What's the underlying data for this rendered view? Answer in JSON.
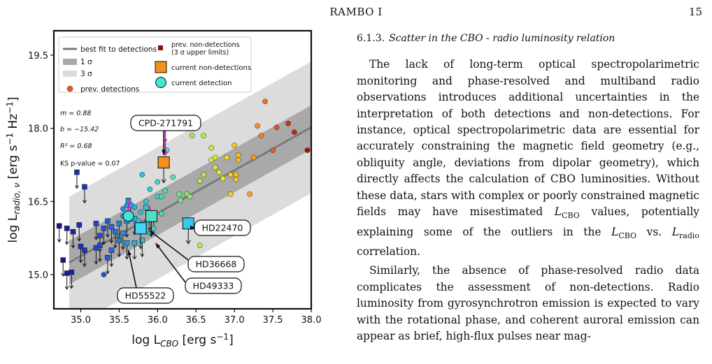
{
  "header": {
    "running_title": "RAMBO I",
    "page_number": "15"
  },
  "figure": {
    "chart_data": {
      "type": "scatter",
      "xlabel": "log L_CBO [erg s^-1]",
      "ylabel": "log L_radio,ν [erg s^-1 Hz^-1]",
      "xlim": [
        34.65,
        38.0
      ],
      "ylim": [
        14.3,
        20.0
      ],
      "x_ticks": [
        "35.0",
        "35.5",
        "36.0",
        "36.5",
        "37.0",
        "37.5",
        "38.0"
      ],
      "y_ticks": [
        "15.0",
        "16.5",
        "18.0",
        "19.5"
      ],
      "fit": {
        "m": 0.88,
        "b": -15.42,
        "sigma1": 0.45,
        "sigma3": 1.35
      },
      "stats": {
        "m_label": "m = 0.88",
        "b_label": "b = −15.42",
        "r2_label": "R² = 0.68",
        "ks_label": "KS p-value = 0.07"
      },
      "legend": {
        "placement": "top",
        "best_fit": "best fit to detections",
        "sigma1": "1 σ",
        "sigma3": "3 σ",
        "prev_detections": "prev. detections",
        "prev_nondet_line1": "prev. non-detections",
        "prev_nondet_line2": "(3 σ upper limits)",
        "current_nondet": "current non-detections",
        "current_det": "current detection"
      },
      "annotations": [
        "CPD-271791",
        "HD22470",
        "HD36668",
        "HD49333",
        "HD55522"
      ],
      "colors": {
        "fit_line": "#7a7a7a",
        "band1": "#a9a9a9",
        "band3": "#dcdcdc",
        "arrow_magenta": "#d61cc8",
        "prev_nondet": "#8b0f10",
        "current_nondet": "#f5901a",
        "current_det": "#3fe7d0"
      },
      "series": [
        {
          "name": "prev. detections",
          "points": [
            [
              35.6,
              16.42
            ],
            [
              35.7,
              16.38
            ],
            [
              35.78,
              16.28
            ],
            [
              35.9,
              16.22
            ],
            [
              36.05,
              16.25
            ],
            [
              35.72,
              16.05
            ],
            [
              35.85,
              16.05
            ],
            [
              35.95,
              15.95
            ],
            [
              35.55,
              16.35
            ],
            [
              35.62,
              16.5
            ],
            [
              35.85,
              16.5
            ],
            [
              36.0,
              16.6
            ],
            [
              36.05,
              16.6
            ],
            [
              36.28,
              16.65
            ],
            [
              36.38,
              16.65
            ],
            [
              36.42,
              16.6
            ],
            [
              36.55,
              16.92
            ],
            [
              36.6,
              17.05
            ],
            [
              36.75,
              17.2
            ],
            [
              36.8,
              17.1
            ],
            [
              36.85,
              16.97
            ],
            [
              36.95,
              17.05
            ],
            [
              37.02,
              16.95
            ],
            [
              36.7,
              17.35
            ],
            [
              36.75,
              17.4
            ],
            [
              36.9,
              17.4
            ],
            [
              37.0,
              17.65
            ],
            [
              37.05,
              17.45
            ],
            [
              37.05,
              17.35
            ],
            [
              37.02,
              17.05
            ],
            [
              37.25,
              17.4
            ],
            [
              37.3,
              18.05
            ],
            [
              37.35,
              17.85
            ],
            [
              37.4,
              18.55
            ],
            [
              37.5,
              17.55
            ],
            [
              37.7,
              18.1
            ],
            [
              37.78,
              17.92
            ],
            [
              37.95,
              17.55
            ],
            [
              37.55,
              18.02
            ],
            [
              36.6,
              17.85
            ],
            [
              36.45,
              17.85
            ],
            [
              36.7,
              17.6
            ],
            [
              36.2,
              17.0
            ],
            [
              36.1,
              16.72
            ],
            [
              36.0,
              16.9
            ],
            [
              35.9,
              16.75
            ],
            [
              35.8,
              17.05
            ],
            [
              36.12,
              17.55
            ],
            [
              36.3,
              16.52
            ],
            [
              37.2,
              16.65
            ],
            [
              36.95,
              16.65
            ],
            [
              35.75,
              16.1
            ],
            [
              35.55,
              16.2
            ],
            [
              36.55,
              15.6
            ],
            [
              35.85,
              15.9
            ],
            [
              35.9,
              15.85
            ],
            [
              35.3,
              15.0
            ]
          ]
        },
        {
          "name": "prev. non-detections",
          "points": [
            [
              34.72,
              16.0
            ],
            [
              34.82,
              15.95
            ],
            [
              34.9,
              15.88
            ],
            [
              34.98,
              16.02
            ],
            [
              35.2,
              16.05
            ],
            [
              35.25,
              15.8
            ],
            [
              35.3,
              15.95
            ],
            [
              35.35,
              16.1
            ],
            [
              35.4,
              15.98
            ],
            [
              35.45,
              15.88
            ],
            [
              35.5,
              16.05
            ],
            [
              35.55,
              15.85
            ],
            [
              35.6,
              15.65
            ],
            [
              35.62,
              16.52
            ],
            [
              35.65,
              16.42
            ],
            [
              35.85,
              16.38
            ],
            [
              35.9,
              16.25
            ],
            [
              35.95,
              16.25
            ],
            [
              35.05,
              16.8
            ],
            [
              34.95,
              17.1
            ],
            [
              35.0,
              15.58
            ],
            [
              35.05,
              15.5
            ],
            [
              35.2,
              15.55
            ],
            [
              35.25,
              15.6
            ],
            [
              35.35,
              15.35
            ],
            [
              35.4,
              15.5
            ],
            [
              35.5,
              15.7
            ],
            [
              35.7,
              15.65
            ],
            [
              35.8,
              15.7
            ],
            [
              35.6,
              16.1
            ],
            [
              35.7,
              16.15
            ],
            [
              34.77,
              15.3
            ],
            [
              34.82,
              15.03
            ],
            [
              34.88,
              15.05
            ],
            [
              36.1,
              18.05
            ]
          ]
        }
      ]
    }
  },
  "text": {
    "section_number": "6.1.3.",
    "section_title": "Scatter in the CBO - radio luminosity relation",
    "paragraphs": [
      "The lack of long-term optical spectropolarimetric monitoring and phase-resolved and multiband radio observations introduces additional uncertainties in the interpretation of both detections and non-detections. For instance, optical spectropolarimetric data are essential for accurately constraining the magnetic field geometry (e.g., obliquity angle, deviations from dipolar geometry), which directly affects the calculation of CBO luminosities. Without these data, stars with complex or poorly constrained magnetic fields may have misestimated L_CBO values, potentially explaining some of the outliers in the L_CBO vs. L_radio correlation.",
      "Similarly, the absence of phase-resolved radio data complicates the assessment of non-detections. Radio luminosity from gyrosynchrotron emission is expected to vary with the rotational phase, and coherent auroral emission can appear as brief, high-flux pulses near mag-"
    ]
  }
}
